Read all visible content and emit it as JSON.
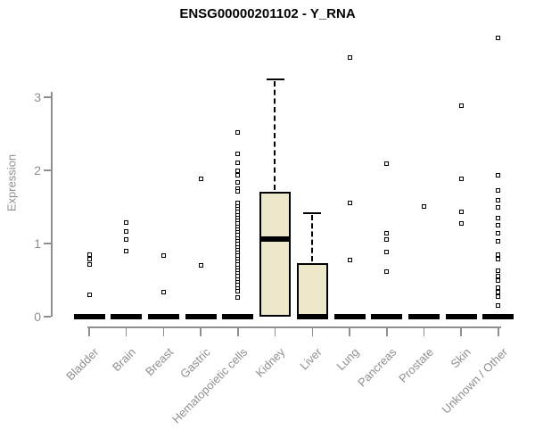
{
  "chart_data": {
    "type": "boxplot",
    "title": "ENSG00000201102 - Y_RNA",
    "xlabel": "",
    "ylabel": "Expression",
    "ylim": [
      0,
      3.9
    ],
    "yticks": [
      0,
      1,
      2,
      3
    ],
    "grid": false,
    "legend": "none",
    "colors": {
      "box_fill": "#EDE8CA",
      "box_line": "#000000",
      "axis": "#8f8f8f",
      "background": "#ffffff"
    },
    "categories": [
      "Bladder",
      "Brain",
      "Breast",
      "Gastric",
      "Hematopoietic cells",
      "Kidney",
      "Liver",
      "Lung",
      "Pancreas",
      "Prostate",
      "Skin",
      "Unknown / Other"
    ],
    "series": [
      {
        "category": "Bladder",
        "whisker_low": 0,
        "q1": 0,
        "median": 0,
        "q3": 0,
        "whisker_high": 0,
        "outliers": [
          0.85,
          0.79,
          0.71,
          0.3
        ]
      },
      {
        "category": "Brain",
        "whisker_low": 0,
        "q1": 0,
        "median": 0,
        "q3": 0,
        "whisker_high": 0,
        "outliers": [
          1.29,
          1.17,
          1.06,
          0.9
        ]
      },
      {
        "category": "Breast",
        "whisker_low": 0,
        "q1": 0,
        "median": 0,
        "q3": 0,
        "whisker_high": 0,
        "outliers": [
          0.83,
          0.33
        ]
      },
      {
        "category": "Gastric",
        "whisker_low": 0,
        "q1": 0,
        "median": 0,
        "q3": 0,
        "whisker_high": 0,
        "outliers": [
          1.89,
          0.7
        ]
      },
      {
        "category": "Hematopoietic cells",
        "whisker_low": 0,
        "q1": 0,
        "median": 0,
        "q3": 0,
        "whisker_high": 0,
        "outliers": [
          2.52,
          2.23,
          2.1,
          1.99,
          1.93,
          1.84,
          1.75,
          1.71,
          1.55,
          1.51,
          1.47,
          1.43,
          1.39,
          1.35,
          1.31,
          1.27,
          1.23,
          1.19,
          1.15,
          1.11,
          1.07,
          1.03,
          0.99,
          0.95,
          0.91,
          0.87,
          0.83,
          0.79,
          0.75,
          0.71,
          0.67,
          0.63,
          0.59,
          0.55,
          0.51,
          0.47,
          0.43,
          0.39,
          0.35,
          0.26
        ]
      },
      {
        "category": "Kidney",
        "whisker_low": 0,
        "q1": 0,
        "median": 1.06,
        "q3": 1.71,
        "whisker_high": 3.25,
        "outliers": []
      },
      {
        "category": "Liver",
        "whisker_low": 0,
        "q1": 0,
        "median": 0,
        "q3": 0.73,
        "whisker_high": 1.42,
        "outliers": []
      },
      {
        "category": "Lung",
        "whisker_low": 0,
        "q1": 0,
        "median": 0,
        "q3": 0,
        "whisker_high": 0,
        "outliers": [
          3.54,
          1.55,
          0.78
        ]
      },
      {
        "category": "Pancreas",
        "whisker_low": 0,
        "q1": 0,
        "median": 0,
        "q3": 0,
        "whisker_high": 0,
        "outliers": [
          2.09,
          1.14,
          1.06,
          0.89,
          0.62
        ]
      },
      {
        "category": "Prostate",
        "whisker_low": 0,
        "q1": 0,
        "median": 0,
        "q3": 0,
        "whisker_high": 0,
        "outliers": [
          1.51
        ]
      },
      {
        "category": "Skin",
        "whisker_low": 0,
        "q1": 0,
        "median": 0,
        "q3": 0,
        "whisker_high": 0,
        "outliers": [
          2.89,
          1.88,
          1.43,
          1.28
        ]
      },
      {
        "category": "Unknown / Other",
        "whisker_low": 0,
        "q1": 0,
        "median": 0,
        "q3": 0,
        "whisker_high": 0,
        "outliers": [
          3.81,
          1.93,
          1.72,
          1.59,
          1.5,
          1.35,
          1.25,
          1.14,
          1.03,
          0.85,
          0.79,
          0.63,
          0.56,
          0.49,
          0.4,
          0.34,
          0.28,
          0.15
        ]
      }
    ]
  }
}
